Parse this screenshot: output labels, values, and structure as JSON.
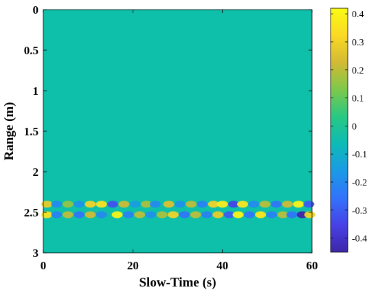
{
  "chart_data": {
    "type": "heatmap",
    "title": "",
    "xlabel": "Slow-Time (s)",
    "ylabel": "Range (m)",
    "xlim": [
      0,
      60
    ],
    "ylim": [
      0,
      3
    ],
    "y_reversed": true,
    "x_ticks": [
      "0",
      "20",
      "40",
      "60"
    ],
    "y_ticks": [
      "0",
      "0.5",
      "1",
      "1.5",
      "2",
      "2.5",
      "3"
    ],
    "colormap": "parula",
    "background_color": "#0ebfa9",
    "colorbar": {
      "range": [
        -0.45,
        0.42
      ],
      "ticks": [
        "0.4",
        "0.3",
        "0.2",
        "0.1",
        "0",
        "-0.1",
        "-0.2",
        "-0.3",
        "-0.4"
      ],
      "colors": [
        "#3e26a8",
        "#4741e6",
        "#3273fb",
        "#1a9ae5",
        "#0dbbb5",
        "#28c883",
        "#7dc84a",
        "#d2ba34",
        "#fbd924",
        "#f9fb14"
      ]
    },
    "bands": [
      {
        "range_m": 2.4,
        "events": [
          {
            "t": 0.8,
            "v": 0.28
          },
          {
            "t": 3.0,
            "v": -0.2
          },
          {
            "t": 5.5,
            "v": 0.15
          },
          {
            "t": 8.0,
            "v": -0.18
          },
          {
            "t": 10.5,
            "v": 0.3
          },
          {
            "t": 13.0,
            "v": 0.35
          },
          {
            "t": 15.5,
            "v": -0.32
          },
          {
            "t": 18.0,
            "v": 0.22
          },
          {
            "t": 20.5,
            "v": -0.15
          },
          {
            "t": 23.0,
            "v": 0.18
          },
          {
            "t": 25.0,
            "v": -0.2
          },
          {
            "t": 28.0,
            "v": 0.25
          },
          {
            "t": 30.5,
            "v": -0.18
          },
          {
            "t": 33.0,
            "v": 0.2
          },
          {
            "t": 35.5,
            "v": -0.22
          },
          {
            "t": 38.0,
            "v": 0.3
          },
          {
            "t": 40.0,
            "v": 0.38
          },
          {
            "t": 42.5,
            "v": -0.35
          },
          {
            "t": 44.5,
            "v": 0.36
          },
          {
            "t": 47.0,
            "v": -0.2
          },
          {
            "t": 49.5,
            "v": 0.2
          },
          {
            "t": 52.0,
            "v": -0.25
          },
          {
            "t": 54.5,
            "v": 0.22
          },
          {
            "t": 57.0,
            "v": 0.4
          },
          {
            "t": 59.3,
            "v": -0.3
          }
        ]
      },
      {
        "range_m": 2.53,
        "events": [
          {
            "t": 0.8,
            "v": 0.35
          },
          {
            "t": 3.0,
            "v": -0.22
          },
          {
            "t": 5.5,
            "v": 0.2
          },
          {
            "t": 8.0,
            "v": -0.25
          },
          {
            "t": 10.5,
            "v": 0.22
          },
          {
            "t": 13.0,
            "v": -0.2
          },
          {
            "t": 16.5,
            "v": 0.4
          },
          {
            "t": 19.0,
            "v": -0.22
          },
          {
            "t": 21.5,
            "v": 0.2
          },
          {
            "t": 24.0,
            "v": -0.18
          },
          {
            "t": 26.5,
            "v": 0.18
          },
          {
            "t": 29.0,
            "v": 0.3
          },
          {
            "t": 31.5,
            "v": -0.25
          },
          {
            "t": 34.0,
            "v": 0.2
          },
          {
            "t": 36.5,
            "v": -0.22
          },
          {
            "t": 39.0,
            "v": 0.28
          },
          {
            "t": 41.5,
            "v": -0.3
          },
          {
            "t": 43.5,
            "v": 0.4
          },
          {
            "t": 46.0,
            "v": -0.25
          },
          {
            "t": 48.5,
            "v": 0.36
          },
          {
            "t": 51.0,
            "v": -0.22
          },
          {
            "t": 53.5,
            "v": 0.2
          },
          {
            "t": 55.5,
            "v": -0.25
          },
          {
            "t": 57.8,
            "v": -0.45
          },
          {
            "t": 59.5,
            "v": 0.3
          }
        ]
      }
    ]
  }
}
